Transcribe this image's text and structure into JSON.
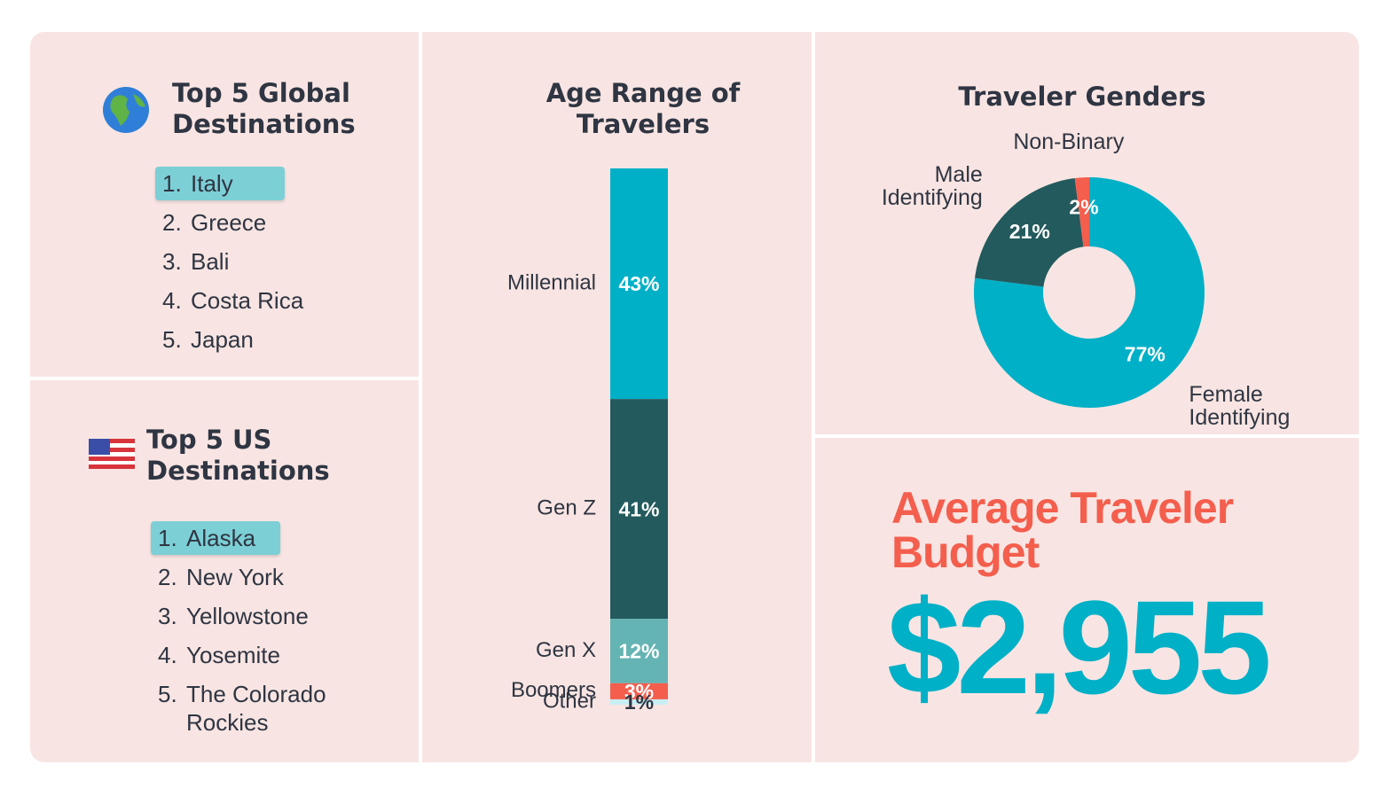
{
  "global_destinations": {
    "title": "Top 5 Global Destinations",
    "items": [
      {
        "rank": "1.",
        "name": "Italy"
      },
      {
        "rank": "2.",
        "name": "Greece"
      },
      {
        "rank": "3.",
        "name": "Bali"
      },
      {
        "rank": "4.",
        "name": "Costa Rica"
      },
      {
        "rank": "5.",
        "name": "Japan"
      }
    ]
  },
  "us_destinations": {
    "title": "Top 5 US Destinations",
    "items": [
      {
        "rank": "1.",
        "name": "Alaska"
      },
      {
        "rank": "2.",
        "name": "New York"
      },
      {
        "rank": "3.",
        "name": "Yellowstone"
      },
      {
        "rank": "4.",
        "name": "Yosemite"
      },
      {
        "rank": "5.",
        "name": "The Colorado Rockies"
      }
    ]
  },
  "chart_data": [
    {
      "type": "stacked_bar",
      "title": "Age Range of Travelers",
      "categories": [
        "Millennial",
        "Gen Z",
        "Gen X",
        "Boomers",
        "Other"
      ],
      "values": [
        43,
        41,
        12,
        3,
        1
      ],
      "value_labels": [
        "43%",
        "41%",
        "12%",
        "3%",
        "1%"
      ],
      "colors": [
        "#00b0c7",
        "#235a5d",
        "#64b4b3",
        "#f45e4d",
        "#c8eef3"
      ]
    },
    {
      "type": "donut",
      "title": "Traveler Genders",
      "categories": [
        "Female Identifying",
        "Male Identifying",
        "Non-Binary"
      ],
      "values": [
        77,
        21,
        2
      ],
      "value_labels": [
        "77%",
        "21%",
        "2%"
      ],
      "colors": [
        "#00b0c7",
        "#235a5d",
        "#f45e4d"
      ]
    }
  ],
  "budget": {
    "title": "Average Traveler Budget",
    "value": "$2,955"
  }
}
